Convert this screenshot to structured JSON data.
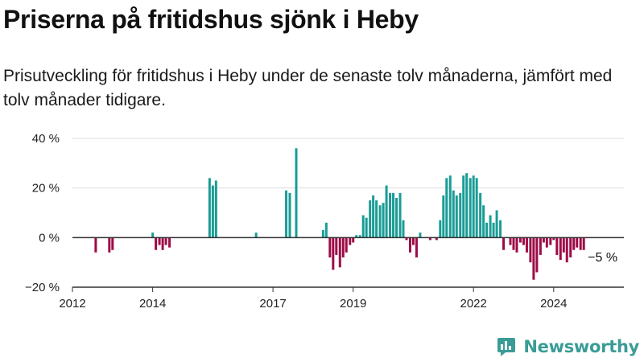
{
  "title": "Priserna på fritidshus sjönk i Heby",
  "subtitle": "Prisutveckling för fritidshus i Heby under de senaste tolv månaderna, jämfört med tolv månader tidigare.",
  "brand": {
    "name": "Newsworthy",
    "icon": "newsworthy-logo-icon",
    "color": "#3a9c96"
  },
  "chart_data": {
    "type": "bar",
    "title": "Priserna på fritidshus sjönk i Heby",
    "xlabel": "",
    "ylabel": "",
    "unit": "%",
    "ylim": [
      -20,
      40
    ],
    "yticks": [
      -20,
      0,
      20,
      40
    ],
    "ytick_labels": [
      "−20 %",
      "0 %",
      "20 %",
      "40 %"
    ],
    "xlim": [
      2012.0,
      2025.75
    ],
    "xticks": [
      2012,
      2014,
      2017,
      2019,
      2022,
      2024
    ],
    "xtick_labels": [
      "2012",
      "2014",
      "2017",
      "2019",
      "2022",
      "2024"
    ],
    "colors": {
      "positive": "#1a9c96",
      "negative": "#9e0b47",
      "axis": "#333333",
      "grid": "#dddddd"
    },
    "annotation": {
      "label": "−5 %",
      "x": 2024.85,
      "y": -5
    },
    "x": [
      2012.58,
      2012.92,
      2013.0,
      2014.0,
      2014.08,
      2014.17,
      2014.25,
      2014.33,
      2014.42,
      2015.42,
      2015.5,
      2015.58,
      2016.58,
      2017.33,
      2017.42,
      2017.58,
      2018.25,
      2018.33,
      2018.42,
      2018.5,
      2018.58,
      2018.67,
      2018.75,
      2018.83,
      2018.92,
      2019.0,
      2019.08,
      2019.17,
      2019.25,
      2019.33,
      2019.42,
      2019.5,
      2019.58,
      2019.67,
      2019.75,
      2019.83,
      2019.92,
      2020.0,
      2020.08,
      2020.17,
      2020.25,
      2020.33,
      2020.42,
      2020.5,
      2020.58,
      2020.67,
      2020.92,
      2021.08,
      2021.17,
      2021.25,
      2021.33,
      2021.42,
      2021.5,
      2021.58,
      2021.67,
      2021.75,
      2021.83,
      2021.92,
      2022.0,
      2022.08,
      2022.17,
      2022.25,
      2022.33,
      2022.42,
      2022.5,
      2022.58,
      2022.67,
      2022.75,
      2022.92,
      2023.0,
      2023.08,
      2023.17,
      2023.25,
      2023.33,
      2023.42,
      2023.5,
      2023.58,
      2023.67,
      2023.75,
      2023.83,
      2023.92,
      2024.0,
      2024.08,
      2024.17,
      2024.25,
      2024.33,
      2024.42,
      2024.5,
      2024.58,
      2024.67,
      2024.75
    ],
    "values": [
      -6,
      -6,
      -5,
      2,
      -5,
      -3,
      -5,
      -3,
      -4,
      24,
      21,
      23,
      2,
      19,
      18,
      36,
      3,
      6,
      -8,
      -13,
      -7,
      -12,
      -8,
      -6,
      -3,
      -2,
      1,
      1,
      9,
      8,
      15,
      17,
      15,
      13,
      14,
      21,
      18,
      18,
      16,
      18,
      7,
      -1,
      -6,
      -3,
      -8,
      2,
      -1,
      -1,
      7,
      17,
      24,
      25,
      19,
      17,
      18,
      25,
      26,
      24,
      25,
      24,
      18,
      13,
      6,
      9,
      6,
      11,
      7,
      -5,
      -3,
      -5,
      -6,
      -2,
      -3,
      -6,
      -10,
      -17,
      -14,
      -7,
      -2,
      -4,
      -3,
      -1,
      -7,
      -9,
      -6,
      -10,
      -8,
      -5,
      -4,
      -5,
      -5
    ]
  }
}
